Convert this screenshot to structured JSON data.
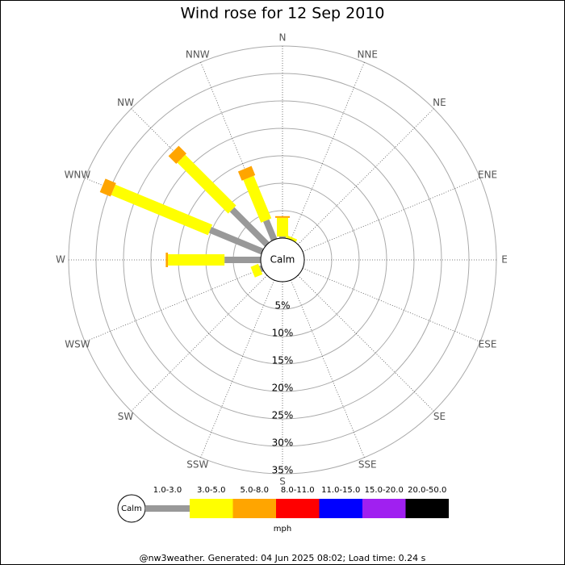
{
  "chart_data": {
    "type": "windrose",
    "title": "Wind rose for 12 Sep 2010",
    "directions": [
      "N",
      "NNE",
      "NE",
      "ENE",
      "E",
      "ESE",
      "SE",
      "SSE",
      "S",
      "SSW",
      "SW",
      "WSW",
      "W",
      "WNW",
      "NW",
      "NNW"
    ],
    "series": [
      {
        "name": "1.0-3.0",
        "color": "#999999",
        "values": [
          0.3,
          0,
          0,
          0,
          0,
          0,
          0,
          0,
          0,
          0,
          0,
          0.4,
          6.6,
          10.3,
          9,
          3.8
        ]
      },
      {
        "name": "3.0-5.0",
        "color": "#ffff00",
        "values": [
          3.4,
          0.5,
          0,
          0,
          0,
          0,
          0,
          0,
          0,
          0,
          0,
          1.5,
          10.3,
          19.1,
          13.1,
          8.4
        ]
      },
      {
        "name": "5.0-8.0",
        "color": "#ffa500",
        "values": [
          0.3,
          0,
          0,
          0,
          0,
          0,
          0,
          0,
          0,
          0,
          0,
          0,
          0.4,
          2.1,
          2,
          1.8
        ]
      },
      {
        "name": "8.0-11.0",
        "color": "#ff0000",
        "values": [
          0,
          0,
          0,
          0,
          0,
          0,
          0,
          0,
          0,
          0,
          0,
          0,
          0,
          0,
          0,
          0
        ]
      },
      {
        "name": "11.0-15.0",
        "color": "#0000ff",
        "values": [
          0,
          0,
          0,
          0,
          0,
          0,
          0,
          0,
          0,
          0,
          0,
          0,
          0,
          0,
          0,
          0
        ]
      },
      {
        "name": "15.0-20.0",
        "color": "#a020f0",
        "values": [
          0,
          0,
          0,
          0,
          0,
          0,
          0,
          0,
          0,
          0,
          0,
          0,
          0,
          0,
          0,
          0
        ]
      },
      {
        "name": "20.0-50.0",
        "color": "#000000",
        "values": [
          0,
          0,
          0,
          0,
          0,
          0,
          0,
          0,
          0,
          0,
          0,
          0,
          0,
          0,
          0,
          0
        ]
      }
    ],
    "rlim": [
      0,
      35
    ],
    "rticks": [
      {
        "value": 5,
        "label": "5%"
      },
      {
        "value": 10,
        "label": "10%"
      },
      {
        "value": 15,
        "label": "15%"
      },
      {
        "value": 20,
        "label": "20%"
      },
      {
        "value": 25,
        "label": "25%"
      },
      {
        "value": 30,
        "label": "30%"
      },
      {
        "value": 35,
        "label": "35%"
      }
    ],
    "calm_label": "Calm",
    "unit": "mph",
    "footer": "@nw3weather. Generated: 04 Jun 2025 08:02; Load time: 0.24 s"
  }
}
